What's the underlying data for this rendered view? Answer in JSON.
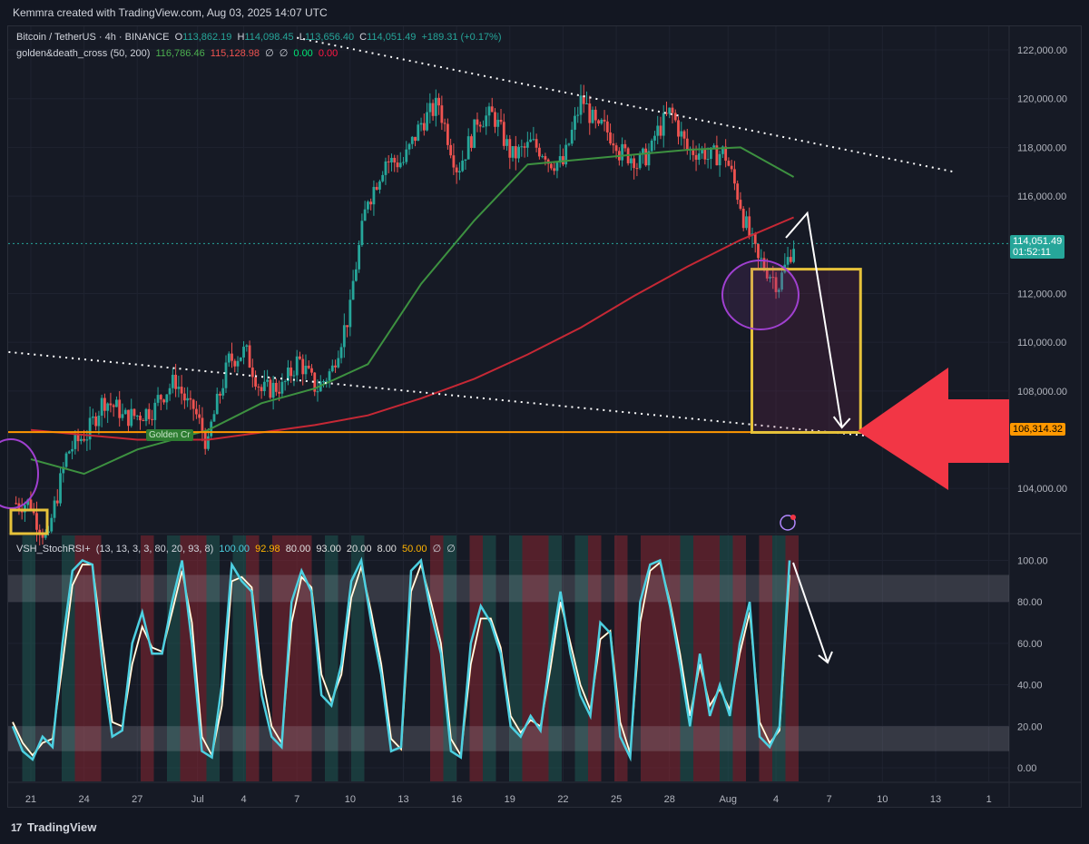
{
  "header": {
    "text": "Kemmra created with TradingView.com, Aug 03, 2025 14:07 UTC"
  },
  "footer": {
    "logo_text": "TradingView",
    "logo_mark": "17"
  },
  "price_pane": {
    "symbol": "Bitcoin / TetherUS · 4h · BINANCE",
    "o_label": "O",
    "o": "113,862.19",
    "h_label": "H",
    "h": "114,098.45",
    "l_label": "L",
    "l": "113,656.40",
    "c_label": "C",
    "c": "114,051.49",
    "change": "+189.31 (+0.17%)",
    "indicator_name": "golden&death_cross (50, 200)",
    "ma50": "116,786.46",
    "ma200": "115,128.98",
    "null1": "∅",
    "null2": "∅",
    "v1": "0.00",
    "v2": "0.00",
    "current_price_label": "114,051.49",
    "countdown_label": "01:52:11",
    "level_label": "106,314.32",
    "golden_cross_tag": "Golden Cr",
    "flash_icon": "lightning-icon",
    "colors": {
      "up": "#26a69a",
      "down": "#ef5350",
      "ma50": "#3d9140",
      "ma200": "#c62835",
      "level": "#ff9800",
      "box": "#e6c23a",
      "arrow": "#f23645",
      "circle": "#a040d0"
    }
  },
  "osc_pane": {
    "name": "VSH_StochRSI+",
    "params": "(13, 13, 3, 3, 80, 20, 93, 8)",
    "k": "100.00",
    "d": "92.98",
    "ob": "80.00",
    "ob2": "93.00",
    "os": "20.00",
    "os2": "8.00",
    "mid": "50.00",
    "null1": "∅",
    "null2": "∅"
  },
  "chart_data": [
    {
      "type": "candlestick",
      "title": "Bitcoin / TetherUS · 4h · BINANCE",
      "interval": "4h",
      "ylim": [
        102800,
        123200
      ],
      "y_ticks": [
        "122,000.00",
        "120,000.00",
        "118,000.00",
        "116,000.00",
        "112,000.00",
        "110,000.00",
        "108,000.00",
        "104,000.00"
      ],
      "x_ticks": [
        "21",
        "24",
        "27",
        "Jul",
        "4",
        "7",
        "10",
        "13",
        "16",
        "19",
        "22",
        "25",
        "28",
        "Aug",
        "4",
        "7",
        "10",
        "13",
        "1"
      ],
      "grid": true,
      "approx_daily_closes": [
        {
          "x": "Jun 21",
          "y": 103400
        },
        {
          "x": "Jun 22",
          "y": 101800
        },
        {
          "x": "Jun 23",
          "y": 105300
        },
        {
          "x": "Jun 24",
          "y": 106200
        },
        {
          "x": "Jun 25",
          "y": 107500
        },
        {
          "x": "Jun 26",
          "y": 107200
        },
        {
          "x": "Jun 27",
          "y": 107000
        },
        {
          "x": "Jun 28",
          "y": 107300
        },
        {
          "x": "Jun 29",
          "y": 108300
        },
        {
          "x": "Jun 30",
          "y": 107200
        },
        {
          "x": "Jul 1",
          "y": 105700
        },
        {
          "x": "Jul 2",
          "y": 108800
        },
        {
          "x": "Jul 3",
          "y": 109600
        },
        {
          "x": "Jul 4",
          "y": 108000
        },
        {
          "x": "Jul 5",
          "y": 108200
        },
        {
          "x": "Jul 6",
          "y": 109200
        },
        {
          "x": "Jul 7",
          "y": 108200
        },
        {
          "x": "Jul 8",
          "y": 108900
        },
        {
          "x": "Jul 9",
          "y": 111300
        },
        {
          "x": "Jul 10",
          "y": 116000
        },
        {
          "x": "Jul 11",
          "y": 117500
        },
        {
          "x": "Jul 12",
          "y": 117400
        },
        {
          "x": "Jul 13",
          "y": 119000
        },
        {
          "x": "Jul 14",
          "y": 119800
        },
        {
          "x": "Jul 15",
          "y": 117200
        },
        {
          "x": "Jul 16",
          "y": 118700
        },
        {
          "x": "Jul 17",
          "y": 119300
        },
        {
          "x": "Jul 18",
          "y": 117800
        },
        {
          "x": "Jul 19",
          "y": 118000
        },
        {
          "x": "Jul 20",
          "y": 117800
        },
        {
          "x": "Jul 21",
          "y": 117300
        },
        {
          "x": "Jul 22",
          "y": 119900
        },
        {
          "x": "Jul 23",
          "y": 118600
        },
        {
          "x": "Jul 24",
          "y": 118300
        },
        {
          "x": "Jul 25",
          "y": 117600
        },
        {
          "x": "Jul 26",
          "y": 117900
        },
        {
          "x": "Jul 27",
          "y": 119400
        },
        {
          "x": "Jul 28",
          "y": 117900
        },
        {
          "x": "Jul 29",
          "y": 117800
        },
        {
          "x": "Jul 30",
          "y": 117800
        },
        {
          "x": "Jul 31",
          "y": 115700
        },
        {
          "x": "Aug 1",
          "y": 113300
        },
        {
          "x": "Aug 2",
          "y": 112500
        },
        {
          "x": "Aug 3",
          "y": 114051
        }
      ],
      "series": [
        {
          "name": "golden&death_cross 50",
          "points": [
            {
              "x": "Jun 21",
              "y": 105200
            },
            {
              "x": "Jun 24",
              "y": 104600
            },
            {
              "x": "Jun 27",
              "y": 105600
            },
            {
              "x": "Jul 1",
              "y": 106400
            },
            {
              "x": "Jul 4",
              "y": 107500
            },
            {
              "x": "Jul 7",
              "y": 108100
            },
            {
              "x": "Jul 10",
              "y": 109100
            },
            {
              "x": "Jul 13",
              "y": 112400
            },
            {
              "x": "Jul 16",
              "y": 115000
            },
            {
              "x": "Jul 19",
              "y": 117300
            },
            {
              "x": "Jul 22",
              "y": 117500
            },
            {
              "x": "Jul 25",
              "y": 117700
            },
            {
              "x": "Jul 28",
              "y": 117900
            },
            {
              "x": "Jul 31",
              "y": 118000
            },
            {
              "x": "Aug 3",
              "y": 116786
            }
          ]
        },
        {
          "name": "golden&death_cross 200",
          "points": [
            {
              "x": "Jun 21",
              "y": 106400
            },
            {
              "x": "Jun 24",
              "y": 106200
            },
            {
              "x": "Jun 27",
              "y": 106000
            },
            {
              "x": "Jul 1",
              "y": 106000
            },
            {
              "x": "Jul 4",
              "y": 106300
            },
            {
              "x": "Jul 7",
              "y": 106600
            },
            {
              "x": "Jul 10",
              "y": 107000
            },
            {
              "x": "Jul 13",
              "y": 107700
            },
            {
              "x": "Jul 16",
              "y": 108500
            },
            {
              "x": "Jul 19",
              "y": 109500
            },
            {
              "x": "Jul 22",
              "y": 110600
            },
            {
              "x": "Jul 25",
              "y": 111900
            },
            {
              "x": "Jul 28",
              "y": 113100
            },
            {
              "x": "Jul 31",
              "y": 114200
            },
            {
              "x": "Aug 3",
              "y": 115129
            }
          ]
        }
      ],
      "annotations": {
        "horizontal_level": 106314.32,
        "current_price": 114051.49,
        "upper_trendline": [
          {
            "x": "Jul 6",
            "y": 122500
          },
          {
            "x": "Aug 12",
            "y": 117000
          }
        ],
        "lower_trendline": [
          {
            "x": "Jun 20",
            "y": 109600
          },
          {
            "x": "Aug 8",
            "y": 106100
          }
        ],
        "target_box": {
          "x0": "Aug 1",
          "x1": "Aug 6",
          "y0": 106300,
          "y1": 113000
        },
        "projection_arrow": [
          {
            "x": "Aug 3",
            "y": 115300
          },
          {
            "x": "Aug 5",
            "y": 106500
          }
        ]
      }
    },
    {
      "type": "line",
      "title": "VSH_StochRSI+",
      "ylim": [
        -5,
        105
      ],
      "y_ticks": [
        "100.00",
        "80.00",
        "60.00",
        "40.00",
        "20.00",
        "0.00"
      ],
      "bands": {
        "ob": [
          80,
          93
        ],
        "os": [
          8,
          20
        ],
        "mid": 50
      },
      "series": [
        {
          "name": "K",
          "values": [
            20,
            8,
            4,
            15,
            10,
            60,
            95,
            100,
            98,
            50,
            15,
            18,
            60,
            75,
            55,
            55,
            80,
            100,
            60,
            8,
            5,
            40,
            98,
            90,
            85,
            35,
            15,
            10,
            80,
            95,
            85,
            35,
            30,
            50,
            90,
            100,
            70,
            45,
            8,
            10,
            95,
            100,
            75,
            55,
            8,
            5,
            60,
            78,
            70,
            55,
            20,
            15,
            25,
            18,
            55,
            85,
            55,
            35,
            25,
            70,
            65,
            15,
            5,
            80,
            98,
            100,
            78,
            50,
            20,
            55,
            25,
            40,
            25,
            60,
            80,
            15,
            10,
            20,
            100
          ]
        },
        {
          "name": "D",
          "values": [
            22,
            12,
            6,
            12,
            14,
            50,
            88,
            98,
            98,
            60,
            22,
            20,
            50,
            68,
            58,
            56,
            75,
            95,
            70,
            15,
            6,
            30,
            90,
            92,
            87,
            45,
            20,
            12,
            70,
            92,
            87,
            45,
            32,
            45,
            82,
            97,
            75,
            50,
            14,
            9,
            85,
            98,
            80,
            60,
            14,
            6,
            50,
            72,
            72,
            58,
            25,
            17,
            23,
            20,
            48,
            80,
            60,
            40,
            28,
            62,
            66,
            22,
            7,
            70,
            95,
            99,
            80,
            55,
            25,
            50,
            30,
            38,
            28,
            55,
            75,
            22,
            12,
            18,
            93
          ]
        }
      ]
    }
  ]
}
